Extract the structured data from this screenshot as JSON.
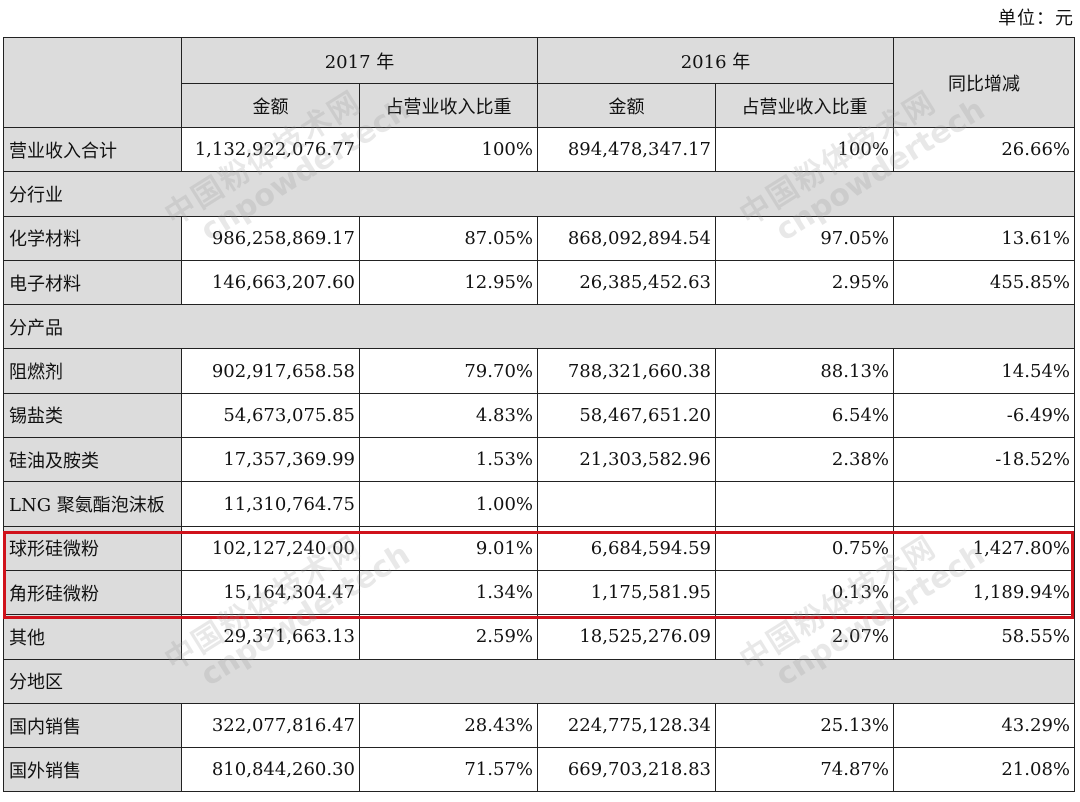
{
  "unit_label": "单位：元",
  "header": {
    "year_2017": "2017 年",
    "year_2016": "2016 年",
    "yoy": "同比增减",
    "amount": "金额",
    "ratio": "占营业收入比重"
  },
  "rows": [
    {
      "label": "营业收入合计",
      "a17": "1,132,922,076.77",
      "r17": "100%",
      "a16": "894,478,347.17",
      "r16": "100%",
      "yoy": "26.66%"
    },
    {
      "section": "分行业"
    },
    {
      "label": "化学材料",
      "a17": "986,258,869.17",
      "r17": "87.05%",
      "a16": "868,092,894.54",
      "r16": "97.05%",
      "yoy": "13.61%"
    },
    {
      "label": "电子材料",
      "a17": "146,663,207.60",
      "r17": "12.95%",
      "a16": "26,385,452.63",
      "r16": "2.95%",
      "yoy": "455.85%"
    },
    {
      "section": "分产品"
    },
    {
      "label": "阻燃剂",
      "a17": "902,917,658.58",
      "r17": "79.70%",
      "a16": "788,321,660.38",
      "r16": "88.13%",
      "yoy": "14.54%"
    },
    {
      "label": "锡盐类",
      "a17": "54,673,075.85",
      "r17": "4.83%",
      "a16": "58,467,651.20",
      "r16": "6.54%",
      "yoy": "-6.49%"
    },
    {
      "label": "硅油及胺类",
      "a17": "17,357,369.99",
      "r17": "1.53%",
      "a16": "21,303,582.96",
      "r16": "2.38%",
      "yoy": "-18.52%"
    },
    {
      "label": "LNG 聚氨酯泡沫板",
      "a17": "11,310,764.75",
      "r17": "1.00%",
      "a16": "",
      "r16": "",
      "yoy": ""
    },
    {
      "label": "球形硅微粉",
      "a17": "102,127,240.00",
      "r17": "9.01%",
      "a16": "6,684,594.59",
      "r16": "0.75%",
      "yoy": "1,427.80%"
    },
    {
      "label": "角形硅微粉",
      "a17": "15,164,304.47",
      "r17": "1.34%",
      "a16": "1,175,581.95",
      "r16": "0.13%",
      "yoy": "1,189.94%"
    },
    {
      "label": "其他",
      "a17": "29,371,663.13",
      "r17": "2.59%",
      "a16": "18,525,276.09",
      "r16": "2.07%",
      "yoy": "58.55%"
    },
    {
      "section": "分地区"
    },
    {
      "label": "国内销售",
      "a17": "322,077,816.47",
      "r17": "28.43%",
      "a16": "224,775,128.34",
      "r16": "25.13%",
      "yoy": "43.29%"
    },
    {
      "label": "国外销售",
      "a17": "810,844,260.30",
      "r17": "71.57%",
      "a16": "669,703,218.83",
      "r16": "74.87%",
      "yoy": "21.08%"
    }
  ],
  "watermark": {
    "cn": "中国粉体技术网",
    "en": "cnpowdertech"
  },
  "highlight_color": "#d0121b"
}
